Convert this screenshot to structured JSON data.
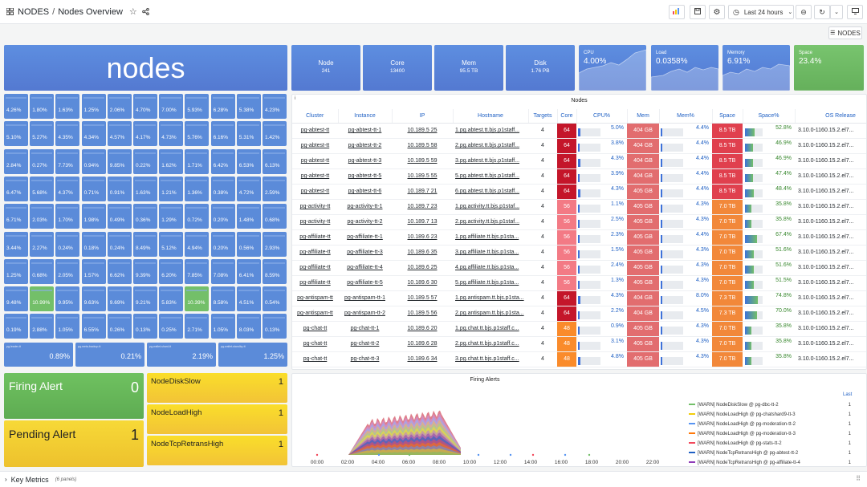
{
  "header": {
    "folder": "NODES",
    "separator": "/",
    "title": "Nodes Overview",
    "time_range": "Last 24 hours",
    "nodes_button": "NODES"
  },
  "icons": {
    "apps": "grid-icon",
    "star": "star-icon",
    "share": "share-icon",
    "add_panel": "add-panel-icon",
    "save": "save-icon",
    "settings": "gear-icon",
    "clock": "clock-icon",
    "zoom_out": "zoom-out-icon",
    "refresh": "refresh-icon",
    "tv": "tv-icon",
    "menu": "hamburger-icon"
  },
  "big_title": "nodes",
  "summary": [
    {
      "label": "Node",
      "value": "241"
    },
    {
      "label": "Core",
      "value": "13400"
    },
    {
      "label": "Mem",
      "value": "95.5 TB"
    },
    {
      "label": "Disk",
      "value": "1.76 PB"
    }
  ],
  "sparks": [
    {
      "label": "CPU",
      "value": "4.00%",
      "color": "#5b8bd9"
    },
    {
      "label": "Load",
      "value": "0.0358%",
      "color": "#5b8bd9"
    },
    {
      "label": "Memory",
      "value": "6.91%",
      "color": "#5b8bd9"
    },
    {
      "label": "Space",
      "value": "23.4%",
      "color": "#73bf69"
    }
  ],
  "grid_values": [
    [
      "4.26%",
      "1.80%",
      "1.63%",
      "1.25%",
      "2.06%",
      "4.70%",
      "7.00%",
      "5.93%",
      "6.28%",
      "5.38%",
      "4.23%"
    ],
    [
      "5.10%",
      "5.27%",
      "4.35%",
      "4.34%",
      "4.57%",
      "4.17%",
      "4.73%",
      "5.76%",
      "6.16%",
      "5.31%",
      "1.42%"
    ],
    [
      "2.84%",
      "0.27%",
      "7.73%",
      "0.94%",
      "9.85%",
      "0.22%",
      "1.62%",
      "1.71%",
      "6.42%",
      "6.53%",
      "6.13%"
    ],
    [
      "6.47%",
      "5.68%",
      "4.37%",
      "0.71%",
      "0.91%",
      "1.63%",
      "1.21%",
      "1.36%",
      "0.38%",
      "4.72%",
      "2.59%"
    ],
    [
      "6.71%",
      "2.03%",
      "1.70%",
      "1.98%",
      "0.49%",
      "0.36%",
      "1.29%",
      "0.72%",
      "0.20%",
      "1.48%",
      "0.68%"
    ],
    [
      "3.44%",
      "2.27%",
      "0.24%",
      "0.18%",
      "0.24%",
      "8.49%",
      "5.12%",
      "4.94%",
      "0.20%",
      "0.56%",
      "2.93%"
    ],
    [
      "1.25%",
      "0.68%",
      "2.05%",
      "1.57%",
      "6.62%",
      "9.39%",
      "6.20%",
      "7.85%",
      "7.08%",
      "6.41%",
      "8.59%"
    ],
    [
      "9.48%",
      "10.99%",
      "9.95%",
      "9.63%",
      "9.69%",
      "9.21%",
      "5.83%",
      "10.39%",
      "8.58%",
      "4.51%",
      "0.54%"
    ],
    [
      "0.19%",
      "2.88%",
      "1.05%",
      "6.55%",
      "0.26%",
      "0.13%",
      "0.25%",
      "2.71%",
      "1.05%",
      "8.03%",
      "0.13%"
    ]
  ],
  "grid_green": [
    [
      7,
      1
    ],
    [
      7,
      7
    ]
  ],
  "wide_cells": [
    {
      "label": "pg-leader-tt",
      "value": "0.89%"
    },
    {
      "label": "pg-meta-backup-tt",
      "value": "0.21%"
    },
    {
      "label": "pg-wallet-shard-tt",
      "value": "2.19%"
    },
    {
      "label": "pg-wallet-standby-tt",
      "value": "1.25%"
    }
  ],
  "table": {
    "title": "Nodes",
    "info": "i",
    "columns": [
      "Cluster",
      "Instance",
      "IP",
      "Hostname",
      "Targets",
      "Core",
      "CPU%",
      "Mem",
      "Mem%",
      "Space",
      "Space%",
      "OS Release"
    ],
    "rows": [
      {
        "cluster": "pg-abtest-tt",
        "instance": "pg-abtest-tt-1",
        "ip": "10.189.5 25",
        "host": "1.pg.abtest.tt.bjs.p1staff...",
        "targets": "4",
        "core": "64",
        "cpu": "5.0%",
        "cpu_f": 0.05,
        "mem": "404 GB",
        "memp": "4.4%",
        "memp_f": 0.044,
        "space": "8.5 TB",
        "spacep": "52.8%",
        "spacep_f": 0.528,
        "os": "3.10.0-1160.15.2.el7..."
      },
      {
        "cluster": "pg-abtest-tt",
        "instance": "pg-abtest-tt-2",
        "ip": "10.189.5 58",
        "host": "2.pg.abtest.tt.bjs.p1staff...",
        "targets": "4",
        "core": "64",
        "cpu": "3.8%",
        "cpu_f": 0.038,
        "mem": "404 GB",
        "memp": "4.4%",
        "memp_f": 0.044,
        "space": "8.5 TB",
        "spacep": "46.9%",
        "spacep_f": 0.469,
        "os": "3.10.0-1160.15.2.el7..."
      },
      {
        "cluster": "pg-abtest-tt",
        "instance": "pg-abtest-tt-3",
        "ip": "10.189.5 59",
        "host": "3.pg.abtest.tt.bjs.p1staff...",
        "targets": "4",
        "core": "64",
        "cpu": "4.3%",
        "cpu_f": 0.043,
        "mem": "404 GB",
        "memp": "4.4%",
        "memp_f": 0.044,
        "space": "8.5 TB",
        "spacep": "46.9%",
        "spacep_f": 0.469,
        "os": "3.10.0-1160.15.2.el7..."
      },
      {
        "cluster": "pg-abtest-tt",
        "instance": "pg-abtest-tt-5",
        "ip": "10.189.5 55",
        "host": "5.pg.abtest.tt.bjs.p1staff...",
        "targets": "4",
        "core": "64",
        "cpu": "3.9%",
        "cpu_f": 0.039,
        "mem": "404 GB",
        "memp": "4.4%",
        "memp_f": 0.044,
        "space": "8.5 TB",
        "spacep": "47.4%",
        "spacep_f": 0.474,
        "os": "3.10.0-1160.15.2.el7..."
      },
      {
        "cluster": "pg-abtest-tt",
        "instance": "pg-abtest-tt-6",
        "ip": "10.189.7 21",
        "host": "6.pg.abtest.tt.bjs.p1staff...",
        "targets": "4",
        "core": "64",
        "cpu": "4.3%",
        "cpu_f": 0.043,
        "mem": "405 GB",
        "memp": "4.4%",
        "memp_f": 0.044,
        "space": "8.5 TB",
        "spacep": "48.4%",
        "spacep_f": 0.484,
        "os": "3.10.0-1160.15.2.el7..."
      },
      {
        "cluster": "pg-activity-tt",
        "instance": "pg-activity-tt-1",
        "ip": "10.189.7 23",
        "host": "1.pg.activity.tt.bjs.p1staf...",
        "targets": "4",
        "core": "56",
        "cpu": "1.1%",
        "cpu_f": 0.011,
        "mem": "405 GB",
        "memp": "4.3%",
        "memp_f": 0.043,
        "space": "7.0 TB",
        "spacep": "35.8%",
        "spacep_f": 0.358,
        "os": "3.10.0-1160.15.2.el7..."
      },
      {
        "cluster": "pg-activity-tt",
        "instance": "pg-activity-tt-2",
        "ip": "10.189.7 13",
        "host": "2.pg.activity.tt.bjs.p1staf...",
        "targets": "4",
        "core": "56",
        "cpu": "2.5%",
        "cpu_f": 0.025,
        "mem": "405 GB",
        "memp": "4.3%",
        "memp_f": 0.043,
        "space": "7.0 TB",
        "spacep": "35.8%",
        "spacep_f": 0.358,
        "os": "3.10.0-1160.15.2.el7..."
      },
      {
        "cluster": "pg-affiliate-tt",
        "instance": "pg-affiliate-tt-1",
        "ip": "10.189.6 23",
        "host": "1.pg.affiliate.tt.bjs.p1sta...",
        "targets": "4",
        "core": "56",
        "cpu": "2.3%",
        "cpu_f": 0.023,
        "mem": "405 GB",
        "memp": "4.4%",
        "memp_f": 0.044,
        "space": "7.0 TB",
        "spacep": "67.4%",
        "spacep_f": 0.674,
        "os": "3.10.0-1160.15.2.el7..."
      },
      {
        "cluster": "pg-affiliate-tt",
        "instance": "pg-affiliate-tt-3",
        "ip": "10.189.6 35",
        "host": "3.pg.affiliate.tt.bjs.p1sta...",
        "targets": "4",
        "core": "56",
        "cpu": "1.5%",
        "cpu_f": 0.015,
        "mem": "405 GB",
        "memp": "4.3%",
        "memp_f": 0.043,
        "space": "7.0 TB",
        "spacep": "51.6%",
        "spacep_f": 0.516,
        "os": "3.10.0-1160.15.2.el7..."
      },
      {
        "cluster": "pg-affiliate-tt",
        "instance": "pg-affiliate-tt-4",
        "ip": "10.189.6 25",
        "host": "4.pg.affiliate.tt.bjs.p1sta...",
        "targets": "4",
        "core": "56",
        "cpu": "2.4%",
        "cpu_f": 0.024,
        "mem": "405 GB",
        "memp": "4.3%",
        "memp_f": 0.043,
        "space": "7.0 TB",
        "spacep": "51.6%",
        "spacep_f": 0.516,
        "os": "3.10.0-1160.15.2.el7..."
      },
      {
        "cluster": "pg-affiliate-tt",
        "instance": "pg-affiliate-tt-5",
        "ip": "10.189.6 30",
        "host": "5.pg.affiliate.tt.bjs.p1sta...",
        "targets": "4",
        "core": "56",
        "cpu": "1.3%",
        "cpu_f": 0.013,
        "mem": "405 GB",
        "memp": "4.3%",
        "memp_f": 0.043,
        "space": "7.0 TB",
        "spacep": "51.5%",
        "spacep_f": 0.515,
        "os": "3.10.0-1160.15.2.el7..."
      },
      {
        "cluster": "pg-antispam-tt",
        "instance": "pg-antispam-tt-1",
        "ip": "10.189.5 57",
        "host": "1.pg.antispam.tt.bjs.p1sta...",
        "targets": "4",
        "core": "64",
        "cpu": "4.3%",
        "cpu_f": 0.043,
        "mem": "404 GB",
        "memp": "8.0%",
        "memp_f": 0.08,
        "space": "7.3 TB",
        "spacep": "74.8%",
        "spacep_f": 0.748,
        "os": "3.10.0-1160.15.2.el7..."
      },
      {
        "cluster": "pg-antispam-tt",
        "instance": "pg-antispam-tt-2",
        "ip": "10.189.5 56",
        "host": "2.pg.antispam.tt.bjs.p1sta...",
        "targets": "4",
        "core": "64",
        "cpu": "2.2%",
        "cpu_f": 0.022,
        "mem": "404 GB",
        "memp": "4.5%",
        "memp_f": 0.045,
        "space": "7.3 TB",
        "spacep": "70.0%",
        "spacep_f": 0.7,
        "os": "3.10.0-1160.15.2.el7..."
      },
      {
        "cluster": "pg-chat-tt",
        "instance": "pg-chat-tt-1",
        "ip": "10.189.6 20",
        "host": "1.pg.chat.tt.bjs.p1staff.c...",
        "targets": "4",
        "core": "48",
        "cpu": "0.9%",
        "cpu_f": 0.009,
        "mem": "405 GB",
        "memp": "4.3%",
        "memp_f": 0.043,
        "space": "7.0 TB",
        "spacep": "35.8%",
        "spacep_f": 0.358,
        "os": "3.10.0-1160.15.2.el7..."
      },
      {
        "cluster": "pg-chat-tt",
        "instance": "pg-chat-tt-2",
        "ip": "10.189.6 28",
        "host": "2.pg.chat.tt.bjs.p1staff.c...",
        "targets": "4",
        "core": "48",
        "cpu": "3.1%",
        "cpu_f": 0.031,
        "mem": "405 GB",
        "memp": "4.3%",
        "memp_f": 0.043,
        "space": "7.0 TB",
        "spacep": "35.8%",
        "spacep_f": 0.358,
        "os": "3.10.0-1160.15.2.el7..."
      },
      {
        "cluster": "pg-chat-tt",
        "instance": "pg-chat-tt-3",
        "ip": "10.189.6 34",
        "host": "3.pg.chat.tt.bjs.p1staff.c...",
        "targets": "4",
        "core": "48",
        "cpu": "4.8%",
        "cpu_f": 0.048,
        "mem": "405 GB",
        "memp": "4.3%",
        "memp_f": 0.043,
        "space": "7.0 TB",
        "spacep": "35.8%",
        "spacep_f": 0.358,
        "os": "3.10.0-1160.15.2.el7..."
      }
    ]
  },
  "alerts": {
    "firing_label": "Firing Alert",
    "firing_value": "0",
    "pending_label": "Pending Alert",
    "pending_value": "1",
    "items": [
      {
        "name": "NodeDiskSlow",
        "value": "1"
      },
      {
        "name": "NodeLoadHigh",
        "value": "1"
      },
      {
        "name": "NodeTcpRetransHigh",
        "value": "1"
      }
    ]
  },
  "chart_data": {
    "type": "area",
    "title": "Firing Alerts",
    "x": [
      "00:00",
      "02:00",
      "04:00",
      "06:00",
      "08:00",
      "10:00",
      "12:00",
      "14:00",
      "16:00",
      "18:00",
      "20:00",
      "22:00"
    ],
    "legend_header": "Last",
    "legend": [
      {
        "name": "[WARN] NodeDiskSlow @ pg-dbc-tt-2",
        "value": "1",
        "color": "#73bf69"
      },
      {
        "name": "[WARN] NodeLoadHigh @ pg-chatshard9-tt-3",
        "value": "1",
        "color": "#f2cc0c"
      },
      {
        "name": "[WARN] NodeLoadHigh @ pg-moderation-tt-2",
        "value": "1",
        "color": "#5794f2"
      },
      {
        "name": "[WARN] NodeLoadHigh @ pg-moderation-tt-3",
        "value": "1",
        "color": "#ff780a"
      },
      {
        "name": "[WARN] NodeLoadHigh @ pg-stats-tt-2",
        "value": "1",
        "color": "#f2495c"
      },
      {
        "name": "[WARN] NodeTcpRetransHigh @ pg-abtest-tt-2",
        "value": "1",
        "color": "#1f60c4"
      },
      {
        "name": "[WARN] NodeTcpRetransHigh @ pg-affiliate-tt-4",
        "value": "1",
        "color": "#8f3bb8"
      }
    ]
  },
  "footer": {
    "row_title": "Key Metrics",
    "row_count": "(6 panels)"
  }
}
